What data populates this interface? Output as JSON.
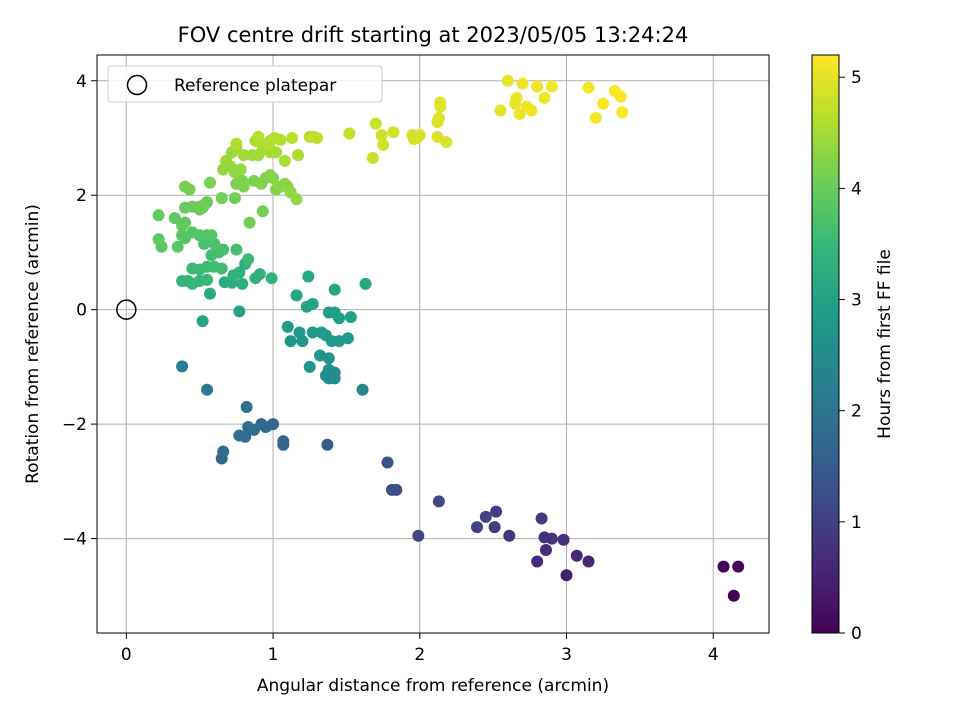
{
  "chart_data": {
    "type": "scatter",
    "title": "FOV centre drift starting at 2023/05/05 13:24:24",
    "xlabel": "Angular distance from reference (arcmin)",
    "ylabel": "Rotation from reference (arcmin)",
    "xlim": [
      -0.2,
      4.38
    ],
    "ylim": [
      -5.65,
      4.45
    ],
    "xticks": [
      0,
      1,
      2,
      3,
      4
    ],
    "xtick_labels": [
      "0",
      "1",
      "2",
      "3",
      "4"
    ],
    "yticks": [
      -4,
      -2,
      0,
      2,
      4
    ],
    "ytick_labels": [
      "−4",
      "−2",
      "0",
      "2",
      "4"
    ],
    "grid": true,
    "legend": {
      "placement": "top-left",
      "entries": [
        {
          "label": "Reference platepar",
          "marker": "open-circle"
        }
      ]
    },
    "reference_point": {
      "x": 0,
      "y": 0
    },
    "colorbar": {
      "label": "Hours from first FF file",
      "colormap": "viridis",
      "range": [
        0,
        5.2
      ],
      "ticks": [
        0,
        1,
        2,
        3,
        4,
        5
      ],
      "tick_labels": [
        "0",
        "1",
        "2",
        "3",
        "4",
        "5"
      ]
    },
    "points": [
      [
        4.07,
        -4.49,
        0.05
      ],
      [
        4.17,
        -4.49,
        0.08
      ],
      [
        4.14,
        -5.0,
        0.02
      ],
      [
        3.0,
        -4.64,
        0.45
      ],
      [
        3.15,
        -4.4,
        0.55
      ],
      [
        3.07,
        -4.3,
        0.6
      ],
      [
        2.98,
        -4.02,
        0.7
      ],
      [
        2.9,
        -4.0,
        0.8
      ],
      [
        2.85,
        -3.98,
        0.75
      ],
      [
        2.86,
        -4.2,
        0.65
      ],
      [
        2.8,
        -4.4,
        0.62
      ],
      [
        2.83,
        -3.65,
        0.9
      ],
      [
        2.61,
        -3.95,
        0.85
      ],
      [
        2.51,
        -3.8,
        0.9
      ],
      [
        2.52,
        -3.53,
        0.95
      ],
      [
        2.45,
        -3.62,
        1.0
      ],
      [
        2.39,
        -3.8,
        1.05
      ],
      [
        2.13,
        -3.35,
        1.1
      ],
      [
        1.99,
        -3.95,
        1.05
      ],
      [
        1.84,
        -3.15,
        1.2
      ],
      [
        1.81,
        -3.15,
        1.25
      ],
      [
        1.78,
        -2.67,
        1.35
      ],
      [
        1.37,
        -2.36,
        1.5
      ],
      [
        1.07,
        -2.3,
        1.7
      ],
      [
        1.07,
        -2.36,
        1.72
      ],
      [
        1.0,
        -2.0,
        1.75
      ],
      [
        0.95,
        -2.05,
        1.78
      ],
      [
        0.92,
        -2.0,
        1.8
      ],
      [
        0.87,
        -2.1,
        1.82
      ],
      [
        0.83,
        -2.05,
        1.85
      ],
      [
        0.81,
        -2.22,
        1.88
      ],
      [
        0.77,
        -2.2,
        1.86
      ],
      [
        0.82,
        -1.7,
        1.95
      ],
      [
        0.66,
        -2.48,
        1.83
      ],
      [
        0.65,
        -2.6,
        1.8
      ],
      [
        0.55,
        -1.4,
        2.1
      ],
      [
        0.38,
        -0.99,
        2.2
      ],
      [
        1.38,
        -1.2,
        2.5
      ],
      [
        1.42,
        -1.2,
        2.55
      ],
      [
        1.42,
        -1.1,
        2.58
      ],
      [
        1.38,
        -1.05,
        2.6
      ],
      [
        1.36,
        -1.15,
        2.52
      ],
      [
        1.61,
        -1.4,
        2.45
      ],
      [
        1.38,
        -0.85,
        2.65
      ],
      [
        1.32,
        -0.8,
        2.7
      ],
      [
        1.25,
        -1.0,
        2.68
      ],
      [
        1.18,
        -0.4,
        2.8
      ],
      [
        1.1,
        -0.3,
        2.85
      ],
      [
        1.12,
        -0.55,
        2.75
      ],
      [
        1.2,
        -0.55,
        2.78
      ],
      [
        1.27,
        -0.4,
        2.82
      ],
      [
        1.33,
        -0.4,
        2.84
      ],
      [
        1.36,
        -0.45,
        2.86
      ],
      [
        1.4,
        -0.55,
        2.8
      ],
      [
        1.45,
        -0.55,
        2.82
      ],
      [
        1.51,
        -0.5,
        2.85
      ],
      [
        1.38,
        -0.05,
        2.9
      ],
      [
        1.42,
        -0.05,
        2.92
      ],
      [
        1.45,
        -0.15,
        2.94
      ],
      [
        1.53,
        -0.13,
        2.95
      ],
      [
        1.27,
        0.1,
        3.0
      ],
      [
        1.23,
        0.05,
        3.02
      ],
      [
        1.16,
        0.25,
        3.05
      ],
      [
        1.24,
        0.58,
        3.1
      ],
      [
        1.42,
        0.35,
        3.08
      ],
      [
        1.63,
        0.45,
        3.12
      ],
      [
        0.52,
        -0.2,
        3.05
      ],
      [
        0.77,
        -0.03,
        3.05
      ],
      [
        0.57,
        0.28,
        3.15
      ],
      [
        0.67,
        0.48,
        3.2
      ],
      [
        0.72,
        0.47,
        3.22
      ],
      [
        0.79,
        0.45,
        3.25
      ],
      [
        0.77,
        0.65,
        3.28
      ],
      [
        0.81,
        0.8,
        3.3
      ],
      [
        0.88,
        0.55,
        3.32
      ],
      [
        0.91,
        0.62,
        3.35
      ],
      [
        0.99,
        0.55,
        3.37
      ],
      [
        0.73,
        0.6,
        3.38
      ],
      [
        0.38,
        0.5,
        3.4
      ],
      [
        0.42,
        0.5,
        3.42
      ],
      [
        0.45,
        0.45,
        3.45
      ],
      [
        0.5,
        0.5,
        3.46
      ],
      [
        0.55,
        0.52,
        3.48
      ],
      [
        0.45,
        0.72,
        3.5
      ],
      [
        0.5,
        0.7,
        3.52
      ],
      [
        0.55,
        0.75,
        3.55
      ],
      [
        0.6,
        0.75,
        3.57
      ],
      [
        0.65,
        0.72,
        3.58
      ],
      [
        0.58,
        0.95,
        3.6
      ],
      [
        0.63,
        1.0,
        3.62
      ],
      [
        0.66,
        1.05,
        3.65
      ],
      [
        0.53,
        1.15,
        3.67
      ],
      [
        0.6,
        1.15,
        3.7
      ],
      [
        0.75,
        1.05,
        3.66
      ],
      [
        0.83,
        0.88,
        3.55
      ],
      [
        0.5,
        1.3,
        3.75
      ],
      [
        0.55,
        1.3,
        3.77
      ],
      [
        0.58,
        1.3,
        3.78
      ],
      [
        0.45,
        1.35,
        3.8
      ],
      [
        0.38,
        1.3,
        3.82
      ],
      [
        0.4,
        1.25,
        3.83
      ],
      [
        0.35,
        1.1,
        3.85
      ],
      [
        0.24,
        1.1,
        3.86
      ],
      [
        0.22,
        1.23,
        3.88
      ],
      [
        0.38,
        1.47,
        3.9
      ],
      [
        0.33,
        1.6,
        3.92
      ],
      [
        0.4,
        1.52,
        3.94
      ],
      [
        0.22,
        1.65,
        3.95
      ],
      [
        0.4,
        1.78,
        3.96
      ],
      [
        0.45,
        1.8,
        3.98
      ],
      [
        0.5,
        1.8,
        4.0
      ],
      [
        0.54,
        1.85,
        4.02
      ],
      [
        0.5,
        1.75,
        4.03
      ],
      [
        0.52,
        1.78,
        4.04
      ],
      [
        0.55,
        1.88,
        4.05
      ],
      [
        0.65,
        1.95,
        4.06
      ],
      [
        0.74,
        1.95,
        4.07
      ],
      [
        0.84,
        1.52,
        4.08
      ],
      [
        0.93,
        1.72,
        4.09
      ],
      [
        0.4,
        2.15,
        4.1
      ],
      [
        0.43,
        2.1,
        4.12
      ],
      [
        0.57,
        2.22,
        4.14
      ],
      [
        0.75,
        2.2,
        4.15
      ],
      [
        0.79,
        2.25,
        4.16
      ],
      [
        0.8,
        2.15,
        4.17
      ],
      [
        0.87,
        2.25,
        4.18
      ],
      [
        0.92,
        2.2,
        4.2
      ],
      [
        0.95,
        2.3,
        4.22
      ],
      [
        0.98,
        2.35,
        4.24
      ],
      [
        1.0,
        2.3,
        4.25
      ],
      [
        1.02,
        2.1,
        4.26
      ],
      [
        1.05,
        2.15,
        4.27
      ],
      [
        1.08,
        2.2,
        4.28
      ],
      [
        1.1,
        2.15,
        4.3
      ],
      [
        1.12,
        2.05,
        4.32
      ],
      [
        1.16,
        1.93,
        4.34
      ],
      [
        0.66,
        2.45,
        4.35
      ],
      [
        0.71,
        2.5,
        4.36
      ],
      [
        0.74,
        2.4,
        4.37
      ],
      [
        0.78,
        2.45,
        4.38
      ],
      [
        0.68,
        2.6,
        4.4
      ],
      [
        0.72,
        2.75,
        4.42
      ],
      [
        0.75,
        2.85,
        4.44
      ],
      [
        0.8,
        2.7,
        4.45
      ],
      [
        0.86,
        2.7,
        4.46
      ],
      [
        0.9,
        2.7,
        4.47
      ],
      [
        0.93,
        2.8,
        4.48
      ],
      [
        0.98,
        2.75,
        4.5
      ],
      [
        1.02,
        2.75,
        4.52
      ],
      [
        1.08,
        2.6,
        4.54
      ],
      [
        1.17,
        2.7,
        4.56
      ],
      [
        0.88,
        2.95,
        4.55
      ],
      [
        0.92,
        2.9,
        4.56
      ],
      [
        0.98,
        2.95,
        4.58
      ],
      [
        1.01,
        3.0,
        4.6
      ],
      [
        1.05,
        2.97,
        4.62
      ],
      [
        0.97,
        2.88,
        4.63
      ],
      [
        0.9,
        3.02,
        4.64
      ],
      [
        0.75,
        2.9,
        4.6
      ],
      [
        1.13,
        3.0,
        4.65
      ],
      [
        1.25,
        3.02,
        4.68
      ],
      [
        1.28,
        3.02,
        4.7
      ],
      [
        1.3,
        3.0,
        4.72
      ],
      [
        1.52,
        3.08,
        4.75
      ],
      [
        1.68,
        2.65,
        4.78
      ],
      [
        1.7,
        3.25,
        4.8
      ],
      [
        1.74,
        3.05,
        4.82
      ],
      [
        1.75,
        2.88,
        4.84
      ],
      [
        1.82,
        3.1,
        4.85
      ],
      [
        1.95,
        3.05,
        4.86
      ],
      [
        1.98,
        3.0,
        4.87
      ],
      [
        2.0,
        3.05,
        4.88
      ],
      [
        1.96,
        2.98,
        4.9
      ],
      [
        2.12,
        3.02,
        4.92
      ],
      [
        2.18,
        2.93,
        4.93
      ],
      [
        2.12,
        3.28,
        4.95
      ],
      [
        2.13,
        3.35,
        4.96
      ],
      [
        2.14,
        3.55,
        4.97
      ],
      [
        2.14,
        3.62,
        4.98
      ],
      [
        2.55,
        3.48,
        5.0
      ],
      [
        2.6,
        4.0,
        5.02
      ],
      [
        2.65,
        3.6,
        5.03
      ],
      [
        2.66,
        3.7,
        5.04
      ],
      [
        2.68,
        3.42,
        5.05
      ],
      [
        2.7,
        3.95,
        5.06
      ],
      [
        2.73,
        3.55,
        5.07
      ],
      [
        2.76,
        3.48,
        5.08
      ],
      [
        2.8,
        3.9,
        5.09
      ],
      [
        2.85,
        3.7,
        5.1
      ],
      [
        2.9,
        3.9,
        5.11
      ],
      [
        3.15,
        3.88,
        5.12
      ],
      [
        3.2,
        3.35,
        5.13
      ],
      [
        3.25,
        3.6,
        5.14
      ],
      [
        3.33,
        3.82,
        5.15
      ],
      [
        3.37,
        3.72,
        5.16
      ],
      [
        3.38,
        3.45,
        5.17
      ]
    ]
  }
}
